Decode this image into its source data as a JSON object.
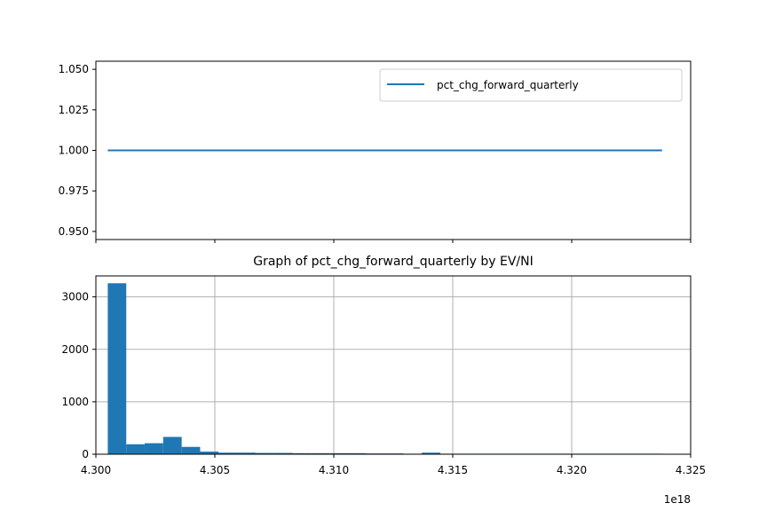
{
  "colors": {
    "series": "#1f77b4",
    "grid": "#b0b0b0",
    "axis": "#000000"
  },
  "chart_data": [
    {
      "type": "line",
      "title": "",
      "xlabel": "",
      "ylabel": "",
      "xlim": [
        4.3,
        4.325
      ],
      "ylim": [
        0.945,
        1.055
      ],
      "grid": false,
      "legend_position": "top-right",
      "x_tick_values": [
        4.3,
        4.305,
        4.31,
        4.315,
        4.32,
        4.325
      ],
      "y_tick_values": [
        0.95,
        0.975,
        1.0,
        1.025,
        1.05
      ],
      "y_tick_labels": [
        "0.950",
        "0.975",
        "1.000",
        "1.025",
        "1.050"
      ],
      "series": [
        {
          "name": "pct_chg_forward_quarterly",
          "x": [
            4.3005,
            4.3238
          ],
          "y": [
            1.0,
            1.0
          ]
        }
      ]
    },
    {
      "type": "bar",
      "title": "Graph of pct_chg_forward_quarterly by EV/NI",
      "xlabel": "",
      "ylabel": "",
      "xlim": [
        4.3,
        4.325
      ],
      "ylim": [
        0,
        3400
      ],
      "grid": true,
      "x_offset_label": "1e18",
      "x_tick_values": [
        4.3,
        4.305,
        4.31,
        4.315,
        4.32,
        4.325
      ],
      "x_tick_labels": [
        "4.300",
        "4.305",
        "4.310",
        "4.315",
        "4.320",
        "4.325"
      ],
      "y_tick_values": [
        0,
        1000,
        2000,
        3000
      ],
      "y_tick_labels": [
        "0",
        "1000",
        "2000",
        "3000"
      ],
      "bin_start": 4.3005,
      "bin_end": 4.3238,
      "values": [
        3260,
        190,
        210,
        330,
        140,
        50,
        30,
        30,
        25,
        25,
        20,
        20,
        20,
        20,
        15,
        15,
        10,
        30,
        10,
        10,
        10,
        10,
        10,
        10,
        10,
        10,
        10,
        10,
        10,
        10
      ]
    }
  ]
}
